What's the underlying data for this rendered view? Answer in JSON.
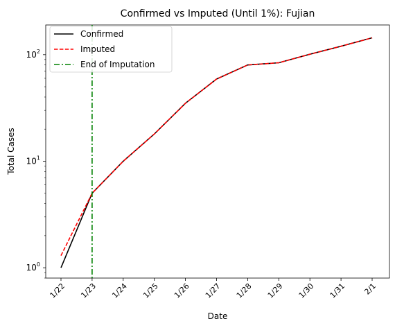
{
  "chart_data": {
    "type": "line",
    "title": "Confirmed vs Imputed (Until 1%): Fujian",
    "xlabel": "Date",
    "ylabel": "Total Cases",
    "y_scale": "log",
    "ylim": [
      0.8,
      190
    ],
    "categories": [
      "1/22",
      "1/23",
      "1/24",
      "1/25",
      "1/26",
      "1/27",
      "1/28",
      "1/29",
      "1/30",
      "1/31",
      "2/1"
    ],
    "y_ticks": [
      {
        "value": 1,
        "base": "10",
        "exp": "0"
      },
      {
        "value": 10,
        "base": "10",
        "exp": "1"
      },
      {
        "value": 100,
        "base": "10",
        "exp": "2"
      }
    ],
    "series": [
      {
        "name": "Confirmed",
        "color": "#000000",
        "dash": "solid",
        "values": [
          1,
          5,
          10,
          18,
          35,
          59,
          80,
          84,
          101,
          120,
          144
        ]
      },
      {
        "name": "Imputed",
        "color": "#ff0000",
        "dash": "dashed",
        "values": [
          1.3,
          5,
          10,
          18,
          35,
          59,
          80,
          84,
          101,
          120,
          144
        ]
      }
    ],
    "vline": {
      "name": "End of Imputation",
      "x": "1/23",
      "color": "#008000",
      "dash": "dashdot"
    },
    "legend_position": "top-left",
    "grid": false
  }
}
